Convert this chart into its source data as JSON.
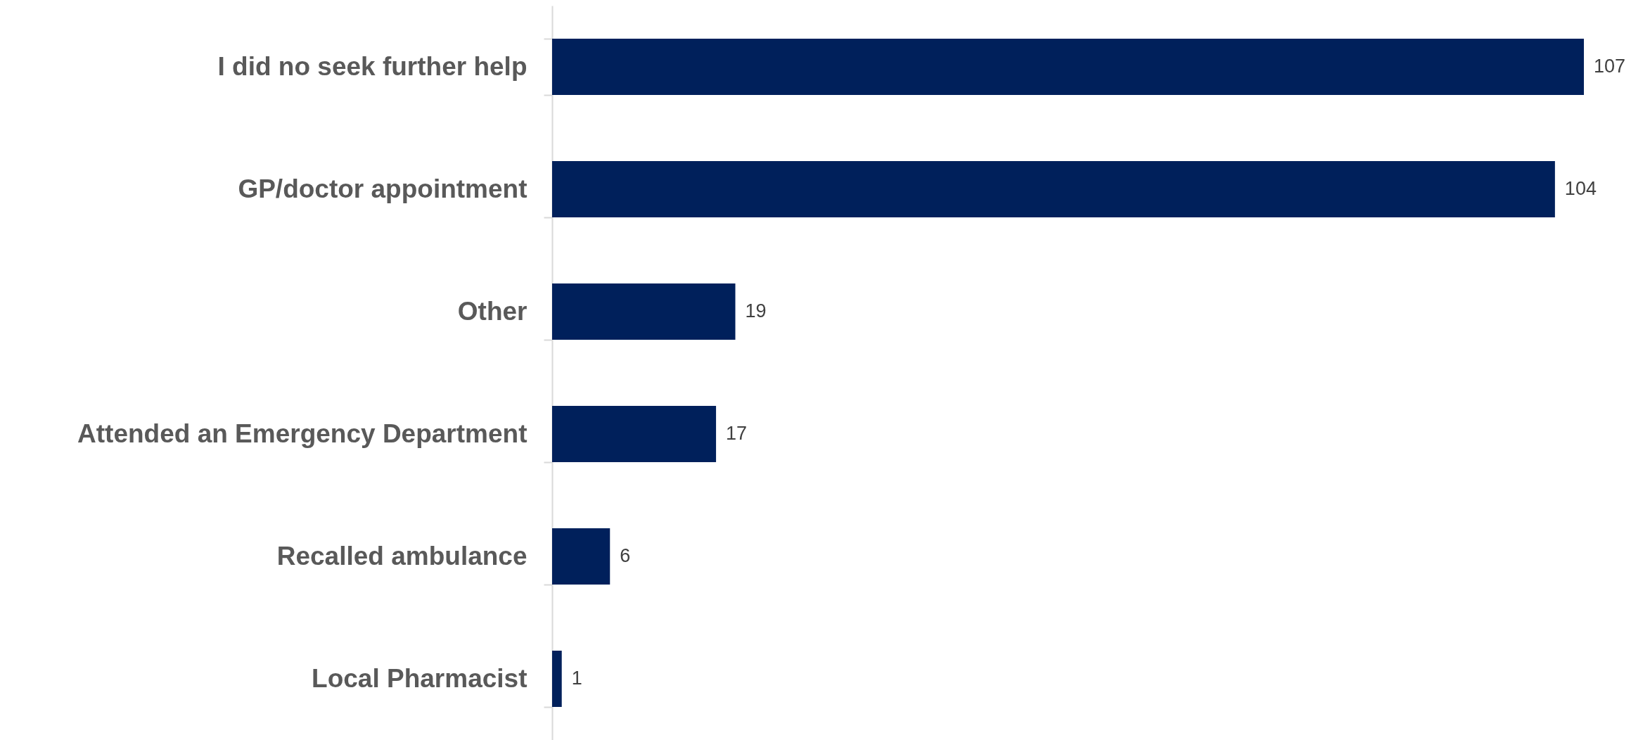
{
  "chart_data": {
    "type": "bar",
    "orientation": "horizontal",
    "categories": [
      "I did no seek further help",
      "GP/doctor appointment",
      "Other",
      "Attended an Emergency Department",
      "Recalled ambulance",
      "Local Pharmacist"
    ],
    "values": [
      107,
      104,
      19,
      17,
      6,
      1
    ],
    "color": "#00205b",
    "data_labels": true
  }
}
